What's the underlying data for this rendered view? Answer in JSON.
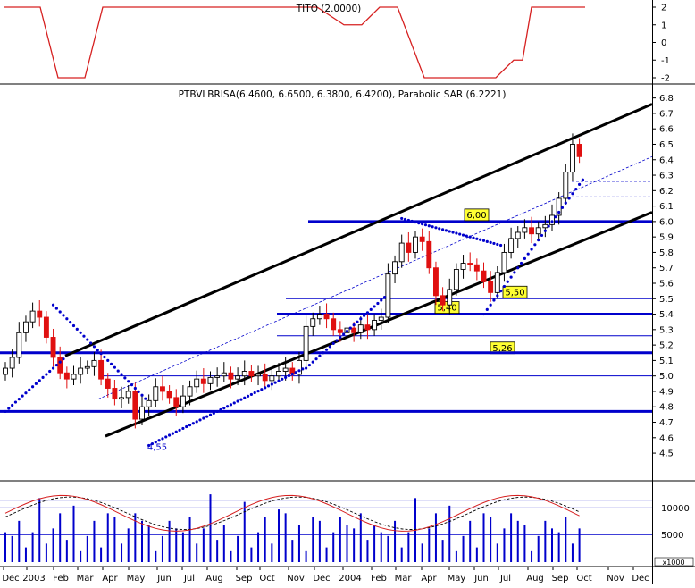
{
  "chart_data": [
    {
      "panel": "indicator",
      "type": "line",
      "title": "TITO (2.0000)",
      "ylim": [
        -2,
        2
      ],
      "y_ticks": [
        "2",
        "1",
        "0",
        "-1",
        "-2"
      ],
      "color": "#d62020",
      "x": [
        0,
        4,
        6,
        9,
        11,
        14,
        17,
        20,
        25,
        30,
        35,
        38,
        40,
        42,
        44,
        47,
        50,
        53,
        55,
        57,
        58,
        59,
        60,
        63,
        65
      ],
      "values": [
        2,
        2,
        -2,
        -2,
        2,
        2,
        2,
        2,
        2,
        2,
        2,
        1,
        1,
        2,
        2,
        -2,
        -2,
        -2,
        -2,
        -1,
        -1,
        2,
        2,
        2,
        2
      ]
    },
    {
      "panel": "price",
      "type": "candlestick",
      "title": "PTBVLBRISA(6.4600, 6.6500, 6.3800, 6.4200), Parabolic SAR (6.2221)",
      "ylim": [
        4.35,
        6.85
      ],
      "y_ticks": [
        "6.8",
        "6.7",
        "6.6",
        "6.5",
        "6.4",
        "6.3",
        "6.2",
        "6.1",
        "6.0",
        "5.9",
        "5.8",
        "5.7",
        "5.6",
        "5.5",
        "5.4",
        "5.3",
        "5.2",
        "5.1",
        "5.0",
        "4.9",
        "4.8",
        "4.7",
        "4.6",
        "4.5"
      ],
      "x_ticks": [
        "Dec",
        "2003",
        "Feb",
        "Mar",
        "Apr",
        "May",
        "Jun",
        "Jul",
        "Aug",
        "Sep",
        "Oct",
        "Nov",
        "Dec",
        "2004",
        "Feb",
        "Mar",
        "Apr",
        "May",
        "Jun",
        "Jul",
        "Aug",
        "Sep",
        "Oct",
        "Nov",
        "Dec"
      ],
      "close": [
        5.05,
        5.12,
        5.28,
        5.35,
        5.42,
        5.38,
        5.25,
        5.12,
        5.02,
        4.98,
        5.01,
        5.05,
        5.06,
        5.1,
        4.98,
        4.92,
        4.85,
        4.86,
        4.9,
        4.72,
        4.8,
        4.84,
        4.93,
        4.9,
        4.86,
        4.8,
        4.87,
        4.93,
        4.98,
        4.95,
        4.99,
        5.0,
        5.02,
        4.98,
        5.0,
        5.03,
        5.0,
        5.01,
        4.97,
        5.0,
        5.03,
        5.05,
        5.01,
        5.1,
        5.32,
        5.37,
        5.4,
        5.37,
        5.3,
        5.28,
        5.31,
        5.28,
        5.33,
        5.3,
        5.36,
        5.38,
        5.66,
        5.74,
        5.86,
        5.8,
        5.9,
        5.87,
        5.7,
        5.52,
        5.46,
        5.56,
        5.69,
        5.73,
        5.72,
        5.68,
        5.61,
        5.54,
        5.67,
        5.8,
        5.89,
        5.93,
        5.96,
        5.92,
        5.96,
        5.98,
        6.04,
        6.15,
        6.32,
        6.5,
        6.42
      ],
      "sar_last": 6.2221,
      "horizontal_levels": [
        {
          "value": 6.0,
          "label": "6,00",
          "thick": true
        },
        {
          "value": 5.4,
          "label": "5,40",
          "thick": true
        },
        {
          "value": 5.5,
          "label": "5,50",
          "thick": false
        },
        {
          "value": 5.26,
          "label": "5,26",
          "thick": false
        },
        {
          "value": 5.15,
          "label": "",
          "thick": true
        },
        {
          "value": 4.77,
          "label": "",
          "thick": true
        },
        {
          "value": 5.0,
          "label": "",
          "thick": false
        }
      ],
      "annotation": "4,55"
    },
    {
      "panel": "volume",
      "type": "bar",
      "y_ticks": [
        "10000",
        "5000"
      ],
      "unit_label": "x1000",
      "color": "#0000cc",
      "oscillator_colors": [
        "#d62020",
        "#000000"
      ]
    }
  ]
}
